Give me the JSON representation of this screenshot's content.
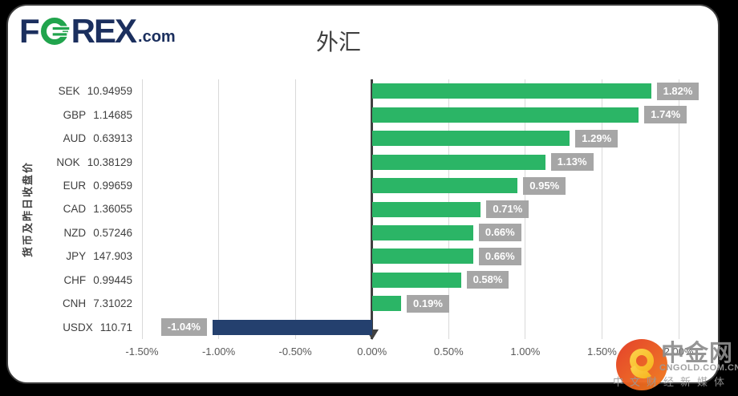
{
  "brand": {
    "f": "F",
    "rex": "REX",
    "dotcom": ".com",
    "navy": "#1b2f5e",
    "green": "#21a44d"
  },
  "title": "外汇",
  "chart_data": {
    "type": "bar",
    "orientation": "horizontal",
    "title": "外汇",
    "ylabel": "货币及昨日收盘价",
    "xlim": [
      -1.5,
      2.0
    ],
    "grid": true,
    "x_tick_values": [
      -1.5,
      -1.0,
      -0.5,
      0.0,
      0.5,
      1.0,
      1.5,
      2.0
    ],
    "x_tick_labels": [
      "-1.50%",
      "-1.00%",
      "-0.50%",
      "0.00%",
      "0.50%",
      "1.00%",
      "1.50%",
      "2.00%"
    ],
    "categories": [
      {
        "code": "SEK",
        "price": "10.94959"
      },
      {
        "code": "GBP",
        "price": "1.14685"
      },
      {
        "code": "AUD",
        "price": "0.63913"
      },
      {
        "code": "NOK",
        "price": "10.38129"
      },
      {
        "code": "EUR",
        "price": "0.99659"
      },
      {
        "code": "CAD",
        "price": "1.36055"
      },
      {
        "code": "NZD",
        "price": "0.57246"
      },
      {
        "code": "JPY",
        "price": "147.903"
      },
      {
        "code": "CHF",
        "price": "0.99445"
      },
      {
        "code": "CNH",
        "price": "7.31022"
      },
      {
        "code": "USDX",
        "price": "110.71"
      }
    ],
    "values": [
      1.82,
      1.74,
      1.29,
      1.13,
      0.95,
      0.71,
      0.66,
      0.66,
      0.58,
      0.19,
      -1.04
    ],
    "value_labels": [
      "1.82%",
      "1.74%",
      "1.29%",
      "1.13%",
      "0.95%",
      "0.71%",
      "0.66%",
      "0.66%",
      "0.58%",
      "0.19%",
      "-1.04%"
    ],
    "bar_color_positive": "#2bb566",
    "bar_color_negative": "#24406e",
    "label_box_color": "#a6a6a6",
    "label_text_color": "#ffffff",
    "gridline_color": "#d9d9d9",
    "axis_color": "#404040"
  },
  "watermark": {
    "name": "中金网",
    "domain": "CNGOLD.COM.CN",
    "tagline": "中文财经新媒体",
    "circle_red": "#e33a22",
    "circle_orange": "#f07c1c",
    "swirl_gold": "#f6b31c"
  }
}
